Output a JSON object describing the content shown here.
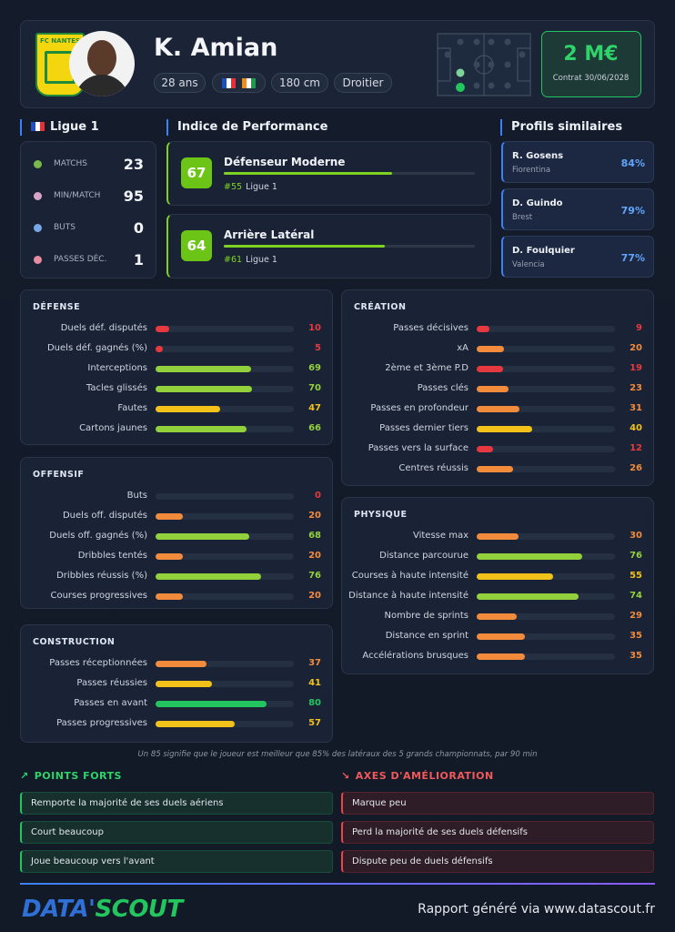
{
  "header": {
    "club": "FC NANTES",
    "name": "K. Amian",
    "age": "28 ans",
    "height": "180 cm",
    "foot": "Droitier",
    "market_value": "2 M€",
    "contract": "Contrat 30/06/2028"
  },
  "league_stats": {
    "title": "Ligue 1",
    "rows": [
      {
        "label": "MATCHS",
        "value": 23
      },
      {
        "label": "MIN/MATCH",
        "value": 95
      },
      {
        "label": "BUTS",
        "value": 0
      },
      {
        "label": "PASSES DÉC.",
        "value": 1
      }
    ]
  },
  "performance": {
    "title": "Indice de Performance",
    "cards": [
      {
        "score": 67,
        "label": "Défenseur Moderne",
        "rank": "#55",
        "league": "Ligue 1"
      },
      {
        "score": 64,
        "label": "Arrière Latéral",
        "rank": "#61",
        "league": "Ligue 1"
      }
    ]
  },
  "similar": {
    "title": "Profils similaires",
    "profiles": [
      {
        "name": "R. Gosens",
        "club": "Fiorentina",
        "similarity": "84%"
      },
      {
        "name": "D. Guindo",
        "club": "Brest",
        "similarity": "79%"
      },
      {
        "name": "D. Foulquier",
        "club": "Valencia",
        "similarity": "77%"
      }
    ]
  },
  "sections": [
    {
      "title": "DÉFENSE",
      "rows": [
        {
          "label": "Duels déf. disputés",
          "value": 10
        },
        {
          "label": "Duels déf. gagnés (%)",
          "value": 5
        },
        {
          "label": "Interceptions",
          "value": 69
        },
        {
          "label": "Tacles glissés",
          "value": 70
        },
        {
          "label": "Fautes",
          "value": 47
        },
        {
          "label": "Cartons jaunes",
          "value": 66
        }
      ]
    },
    {
      "title": "OFFENSIF",
      "rows": [
        {
          "label": "Buts",
          "value": 0
        },
        {
          "label": "Duels off. disputés",
          "value": 20
        },
        {
          "label": "Duels off. gagnés (%)",
          "value": 68
        },
        {
          "label": "Dribbles tentés",
          "value": 20
        },
        {
          "label": "Dribbles réussis (%)",
          "value": 76
        },
        {
          "label": "Courses progressives",
          "value": 20
        }
      ]
    },
    {
      "title": "CONSTRUCTION",
      "rows": [
        {
          "label": "Passes réceptionnées",
          "value": 37
        },
        {
          "label": "Passes réussies",
          "value": 41
        },
        {
          "label": "Passes en avant",
          "value": 80
        },
        {
          "label": "Passes progressives",
          "value": 57
        }
      ]
    },
    {
      "title": "CRÉATION",
      "rows": [
        {
          "label": "Passes décisives",
          "value": 9
        },
        {
          "label": "xA",
          "value": 20
        },
        {
          "label": "2ème et 3ème P.D",
          "value": 19
        },
        {
          "label": "Passes clés",
          "value": 23
        },
        {
          "label": "Passes en profondeur",
          "value": 31
        },
        {
          "label": "Passes dernier tiers",
          "value": 40
        },
        {
          "label": "Passes vers la surface",
          "value": 12
        },
        {
          "label": "Centres réussis",
          "value": 26
        }
      ]
    },
    {
      "title": "PHYSIQUE",
      "rows": [
        {
          "label": "Vitesse max",
          "value": 30
        },
        {
          "label": "Distance parcourue",
          "value": 76
        },
        {
          "label": "Courses à haute intensité",
          "value": 55
        },
        {
          "label": "Distance à haute intensité",
          "value": 74
        },
        {
          "label": "Nombre de sprints",
          "value": 29
        },
        {
          "label": "Distance en sprint",
          "value": 35
        },
        {
          "label": "Accélérations brusques",
          "value": 35
        }
      ]
    }
  ],
  "footnote": "Un 85 signifie que le joueur est meilleur que 85% des latéraux des 5 grands championnats, par 90 min",
  "strengths": {
    "title": "POINTS FORTS",
    "items": [
      "Remporte la majorité de ses duels aériens",
      "Court beaucoup",
      "Joue beaucoup vers l'avant"
    ]
  },
  "improvements": {
    "title": "AXES D'AMÉLIORATION",
    "items": [
      "Marque peu",
      "Perd la majorité de ses duels défensifs",
      "Dispute peu de duels défensifs"
    ]
  },
  "footer": {
    "brand_a": "DATA'",
    "brand_b": "SCOUT",
    "text": "Rapport généré via www.datascout.fr"
  }
}
